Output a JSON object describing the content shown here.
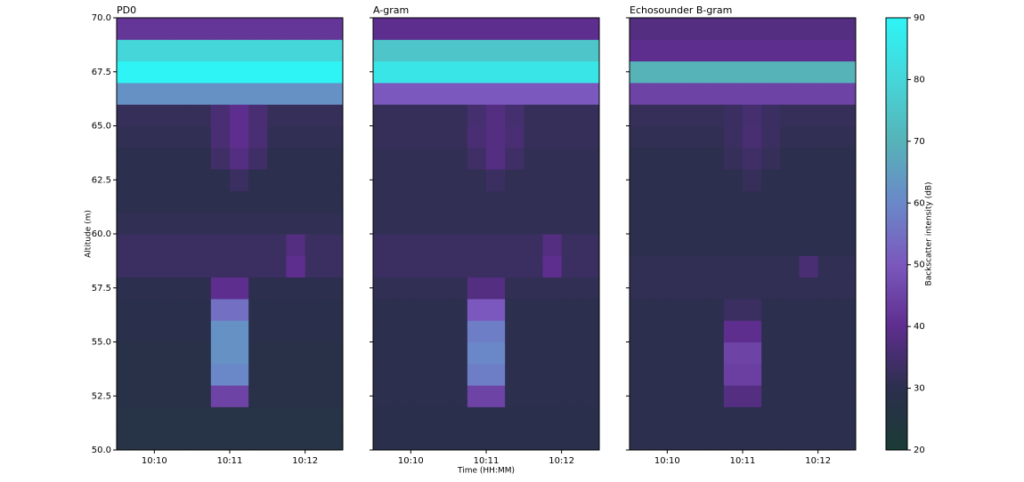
{
  "chart_data": [
    {
      "type": "heatmap",
      "title": "PD0",
      "ylabel": "Altitude (m)",
      "xbins": [
        9.5,
        9.75,
        10,
        10.25,
        10.5,
        10.75,
        11,
        11.25,
        11.5,
        11.75,
        12,
        12.25,
        12.5
      ],
      "ybins": [
        50,
        51,
        52,
        53,
        54,
        55,
        56,
        57,
        58,
        59,
        60,
        61,
        62,
        63,
        64,
        65,
        66,
        67,
        68,
        69,
        70
      ],
      "values": [
        [
          27,
          27,
          27,
          27,
          27,
          27,
          27,
          27,
          27,
          27,
          27,
          27
        ],
        [
          27,
          27,
          27,
          27,
          27,
          27,
          27,
          27,
          27,
          27,
          27,
          27
        ],
        [
          28,
          28,
          28,
          28,
          28,
          45,
          45,
          28,
          28,
          28,
          28,
          28
        ],
        [
          28,
          28,
          28,
          28,
          28,
          60,
          60,
          28,
          28,
          28,
          28,
          28
        ],
        [
          28,
          28,
          28,
          28,
          28,
          62,
          62,
          28,
          28,
          28,
          28,
          28
        ],
        [
          29,
          29,
          29,
          29,
          29,
          62,
          62,
          29,
          29,
          29,
          29,
          29
        ],
        [
          29,
          29,
          29,
          29,
          29,
          55,
          55,
          29,
          29,
          29,
          29,
          29
        ],
        [
          30,
          30,
          30,
          30,
          30,
          40,
          40,
          30,
          30,
          30,
          30,
          30
        ],
        [
          33,
          33,
          33,
          33,
          33,
          33,
          33,
          33,
          33,
          40,
          33,
          33
        ],
        [
          33,
          33,
          33,
          33,
          33,
          33,
          33,
          33,
          33,
          38,
          33,
          33
        ],
        [
          31,
          31,
          31,
          31,
          31,
          31,
          31,
          31,
          31,
          31,
          31,
          31
        ],
        [
          30,
          30,
          30,
          30,
          30,
          30,
          30,
          30,
          30,
          30,
          30,
          30
        ],
        [
          30,
          30,
          30,
          30,
          30,
          30,
          33,
          30,
          30,
          30,
          30,
          30
        ],
        [
          30,
          30,
          30,
          30,
          30,
          34,
          38,
          34,
          30,
          30,
          30,
          30
        ],
        [
          31,
          31,
          31,
          31,
          31,
          36,
          40,
          36,
          31,
          31,
          31,
          31
        ],
        [
          32,
          32,
          32,
          32,
          32,
          36,
          40,
          36,
          32,
          32,
          32,
          32
        ],
        [
          62,
          62,
          62,
          62,
          62,
          62,
          62,
          62,
          62,
          62,
          62,
          62
        ],
        [
          90,
          90,
          90,
          90,
          90,
          90,
          90,
          90,
          90,
          90,
          90,
          90
        ],
        [
          80,
          80,
          80,
          80,
          80,
          80,
          80,
          80,
          80,
          80,
          80,
          80
        ],
        [
          42,
          42,
          42,
          42,
          42,
          42,
          42,
          42,
          42,
          42,
          42,
          42
        ]
      ],
      "xlim": [
        9.5,
        12.5
      ],
      "ylim": [
        50,
        70
      ],
      "xticks": [
        {
          "value": 10,
          "label": "10:10"
        },
        {
          "value": 11,
          "label": "10:11"
        },
        {
          "value": 12,
          "label": "10:12"
        }
      ],
      "yticks": [
        {
          "value": 50,
          "label": "50.0"
        },
        {
          "value": 52.5,
          "label": "52.5"
        },
        {
          "value": 55,
          "label": "55.0"
        },
        {
          "value": 57.5,
          "label": "57.5"
        },
        {
          "value": 60,
          "label": "60.0"
        },
        {
          "value": 62.5,
          "label": "62.5"
        },
        {
          "value": 65,
          "label": "65.0"
        },
        {
          "value": 67.5,
          "label": "67.5"
        },
        {
          "value": 70,
          "label": "70.0"
        }
      ]
    },
    {
      "type": "heatmap",
      "title": "A-gram",
      "xlabel": "Time (HH:MM)",
      "xbins": [
        9.5,
        9.75,
        10,
        10.25,
        10.5,
        10.75,
        11,
        11.25,
        11.5,
        11.75,
        12,
        12.25,
        12.5
      ],
      "ybins": [
        50,
        51,
        52,
        53,
        54,
        55,
        56,
        57,
        58,
        59,
        60,
        61,
        62,
        63,
        64,
        65,
        66,
        67,
        68,
        69,
        70
      ],
      "values": [
        [
          29,
          29,
          29,
          29,
          29,
          29,
          29,
          29,
          29,
          29,
          29,
          29
        ],
        [
          29,
          29,
          29,
          29,
          29,
          29,
          29,
          29,
          29,
          29,
          29,
          29
        ],
        [
          30,
          30,
          30,
          30,
          30,
          45,
          45,
          30,
          30,
          30,
          30,
          30
        ],
        [
          30,
          30,
          30,
          30,
          30,
          58,
          58,
          30,
          30,
          30,
          30,
          30
        ],
        [
          30,
          30,
          30,
          30,
          30,
          60,
          60,
          30,
          30,
          30,
          30,
          30
        ],
        [
          30,
          30,
          30,
          30,
          30,
          58,
          58,
          30,
          30,
          30,
          30,
          30
        ],
        [
          30,
          30,
          30,
          30,
          30,
          50,
          50,
          30,
          30,
          30,
          30,
          30
        ],
        [
          31,
          31,
          31,
          31,
          31,
          38,
          38,
          31,
          31,
          31,
          31,
          31
        ],
        [
          33,
          33,
          33,
          33,
          33,
          33,
          33,
          33,
          33,
          40,
          33,
          33
        ],
        [
          33,
          33,
          33,
          33,
          33,
          33,
          33,
          33,
          33,
          38,
          33,
          33
        ],
        [
          31,
          31,
          31,
          31,
          31,
          31,
          31,
          31,
          31,
          31,
          31,
          31
        ],
        [
          31,
          31,
          31,
          31,
          31,
          31,
          31,
          31,
          31,
          31,
          31,
          31
        ],
        [
          31,
          31,
          31,
          31,
          31,
          31,
          33,
          31,
          31,
          31,
          31,
          31
        ],
        [
          31,
          31,
          31,
          31,
          31,
          34,
          38,
          34,
          31,
          31,
          31,
          31
        ],
        [
          32,
          32,
          32,
          32,
          32,
          36,
          38,
          36,
          32,
          32,
          32,
          32
        ],
        [
          32,
          32,
          32,
          32,
          32,
          35,
          38,
          35,
          32,
          32,
          32,
          32
        ],
        [
          50,
          50,
          50,
          50,
          50,
          50,
          50,
          50,
          50,
          50,
          50,
          50
        ],
        [
          85,
          85,
          85,
          85,
          85,
          85,
          85,
          85,
          85,
          85,
          85,
          85
        ],
        [
          75,
          75,
          75,
          75,
          75,
          75,
          75,
          75,
          75,
          75,
          75,
          75
        ],
        [
          40,
          40,
          40,
          40,
          40,
          40,
          40,
          40,
          40,
          40,
          40,
          40
        ]
      ],
      "xlim": [
        9.5,
        12.5
      ],
      "ylim": [
        50,
        70
      ],
      "xticks": [
        {
          "value": 10,
          "label": "10:10"
        },
        {
          "value": 11,
          "label": "10:11"
        },
        {
          "value": 12,
          "label": "10:12"
        }
      ]
    },
    {
      "type": "heatmap",
      "title": "Echosounder B-gram",
      "xbins": [
        9.5,
        9.75,
        10,
        10.25,
        10.5,
        10.75,
        11,
        11.25,
        11.5,
        11.75,
        12,
        12.25,
        12.5
      ],
      "ybins": [
        50,
        51,
        52,
        53,
        54,
        55,
        56,
        57,
        58,
        59,
        60,
        61,
        62,
        63,
        64,
        65,
        66,
        67,
        68,
        69,
        70
      ],
      "values": [
        [
          30,
          30,
          30,
          30,
          30,
          30,
          30,
          30,
          30,
          30,
          30,
          30
        ],
        [
          30,
          30,
          30,
          30,
          30,
          30,
          30,
          30,
          30,
          30,
          30,
          30
        ],
        [
          30,
          30,
          30,
          30,
          30,
          38,
          38,
          30,
          30,
          30,
          30,
          30
        ],
        [
          30,
          30,
          30,
          30,
          30,
          44,
          44,
          30,
          30,
          30,
          30,
          30
        ],
        [
          30,
          30,
          30,
          30,
          30,
          45,
          45,
          30,
          30,
          30,
          30,
          30
        ],
        [
          30,
          30,
          30,
          30,
          30,
          40,
          40,
          30,
          30,
          30,
          30,
          30
        ],
        [
          30,
          30,
          30,
          30,
          30,
          33,
          33,
          30,
          30,
          30,
          30,
          30
        ],
        [
          31,
          31,
          31,
          31,
          31,
          31,
          31,
          31,
          31,
          31,
          31,
          31
        ],
        [
          31,
          31,
          31,
          31,
          31,
          31,
          31,
          31,
          31,
          36,
          31,
          31
        ],
        [
          30,
          30,
          30,
          30,
          30,
          30,
          30,
          30,
          30,
          30,
          30,
          30
        ],
        [
          30,
          30,
          30,
          30,
          30,
          30,
          30,
          30,
          30,
          30,
          30,
          30
        ],
        [
          30,
          30,
          30,
          30,
          30,
          30,
          30,
          30,
          30,
          30,
          30,
          30
        ],
        [
          30,
          30,
          30,
          30,
          30,
          30,
          32,
          30,
          30,
          30,
          30,
          30
        ],
        [
          30,
          30,
          30,
          30,
          30,
          32,
          34,
          32,
          30,
          30,
          30,
          30
        ],
        [
          31,
          31,
          31,
          31,
          31,
          33,
          36,
          33,
          31,
          31,
          31,
          31
        ],
        [
          32,
          32,
          32,
          32,
          32,
          33,
          35,
          33,
          32,
          32,
          32,
          32
        ],
        [
          45,
          45,
          45,
          45,
          45,
          45,
          45,
          45,
          45,
          45,
          45,
          45
        ],
        [
          70,
          70,
          70,
          70,
          70,
          70,
          70,
          70,
          70,
          70,
          70,
          70
        ],
        [
          40,
          40,
          40,
          40,
          40,
          40,
          40,
          40,
          40,
          40,
          40,
          40
        ],
        [
          38,
          38,
          38,
          38,
          38,
          38,
          38,
          38,
          38,
          38,
          38,
          38
        ]
      ],
      "xlim": [
        9.5,
        12.5
      ],
      "ylim": [
        50,
        70
      ],
      "xticks": [
        {
          "value": 10,
          "label": "10:10"
        },
        {
          "value": 11,
          "label": "10:11"
        },
        {
          "value": 12,
          "label": "10:12"
        }
      ]
    }
  ],
  "colorbar": {
    "label": "Backscatter intensity (dB)",
    "lim": [
      20,
      90
    ],
    "ticks": [
      20,
      30,
      40,
      50,
      60,
      70,
      80,
      90
    ],
    "colors": [
      "#1a3b35",
      "#2c2f4d",
      "#5e2e8e",
      "#7b58bd",
      "#6a88c8",
      "#56b3b8",
      "#45d6d9",
      "#2ef4f6"
    ]
  }
}
